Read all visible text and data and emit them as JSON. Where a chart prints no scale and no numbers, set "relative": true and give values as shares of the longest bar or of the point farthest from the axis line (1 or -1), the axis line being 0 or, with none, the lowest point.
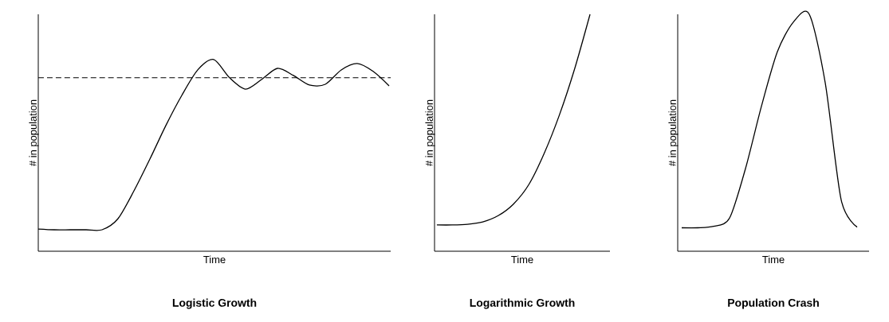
{
  "chart_data": [
    {
      "type": "line",
      "relative": true,
      "title": "Logistic Growth",
      "xlabel": "Time",
      "ylabel": "# in population",
      "color": "#000000",
      "categories": [
        null,
        null,
        null,
        null,
        null,
        null,
        null,
        null,
        null,
        null,
        null,
        null,
        null,
        null,
        null,
        null,
        null,
        null,
        null,
        null,
        null,
        null,
        null
      ],
      "values": [
        0.116,
        0.112,
        0.112,
        0.112,
        0.112,
        0.17,
        0.315,
        0.481,
        0.656,
        0.813,
        0.946,
        1.0,
        0.905,
        0.846,
        0.896,
        0.954,
        0.917,
        0.867,
        0.871,
        0.946,
        0.979,
        0.938,
        0.863
      ],
      "ref_lines": [
        {
          "axis": "y",
          "value": 0.905,
          "line_style": "dashed"
        }
      ]
    },
    {
      "type": "line",
      "relative": true,
      "title": "Logarithmic Growth",
      "xlabel": "Time",
      "ylabel": "# in population",
      "color": "#000000",
      "categories": [
        null,
        null,
        null,
        null,
        null,
        null,
        null,
        null,
        null,
        null,
        null
      ],
      "values": [
        0.111,
        0.111,
        0.114,
        0.124,
        0.15,
        0.199,
        0.281,
        0.412,
        0.575,
        0.771,
        1.0
      ]
    },
    {
      "type": "line",
      "relative": true,
      "title": "Population Crash",
      "xlabel": "Time",
      "ylabel": "# in population",
      "color": "#000000",
      "categories": [
        null,
        null,
        null,
        null,
        null,
        null,
        null,
        null,
        null,
        null,
        null,
        null
      ],
      "values": [
        0.099,
        0.099,
        0.105,
        0.14,
        0.349,
        0.612,
        0.842,
        0.967,
        1.0,
        0.711,
        0.217,
        0.102
      ]
    }
  ]
}
